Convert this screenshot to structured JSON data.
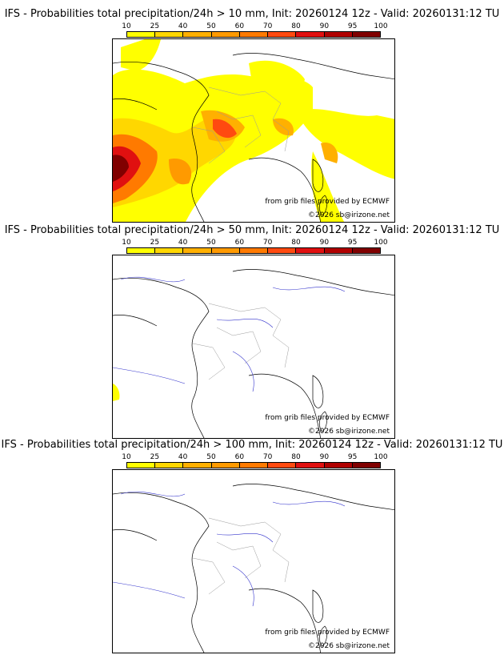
{
  "colorbar": {
    "labels": [
      "10",
      "25",
      "40",
      "50",
      "60",
      "70",
      "80",
      "90",
      "95",
      "100"
    ],
    "colors": [
      "#ffff00",
      "#ffd700",
      "#ffb000",
      "#ff9a00",
      "#ff7a00",
      "#ff4a10",
      "#e01010",
      "#b00000",
      "#800000"
    ]
  },
  "credits": {
    "source": "from grib files provided by ECMWF",
    "copyright": "©2026 sb@irizone.net"
  },
  "panels": [
    {
      "title": "IFS - Probabilities total precipitation/24h > 10 mm, Init: 20260124 12z - Valid: 20260131:12 TU"
    },
    {
      "title": "IFS - Probabilities total precipitation/24h > 50 mm, Init: 20260124 12z - Valid: 20260131:12 TU"
    },
    {
      "title": "IFS - Probabilities total precipitation/24h > 100 mm, Init: 20260124 12z - Valid: 20260131:12 TU"
    }
  ]
}
